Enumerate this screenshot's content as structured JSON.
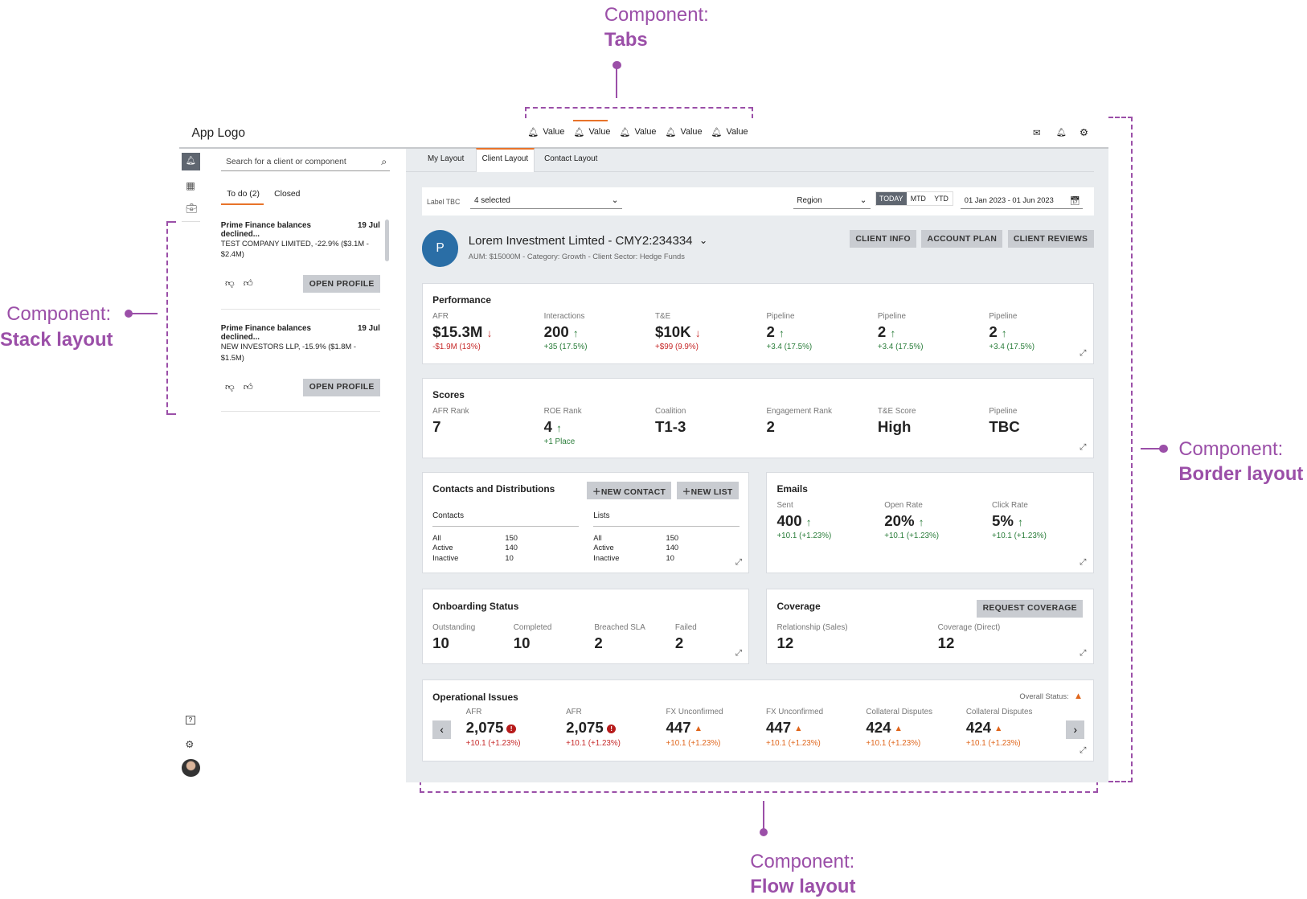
{
  "annotations": {
    "tabs": {
      "prefix": "Component:",
      "name": "Tabs"
    },
    "stack": {
      "prefix": "Component:",
      "name": "Stack layout"
    },
    "border": {
      "prefix": "Component:",
      "name": "Border layout"
    },
    "flow": {
      "prefix": "Component:",
      "name": "Flow layout"
    },
    "color": "#9b4fa8"
  },
  "header": {
    "logo": "App Logo",
    "tabs": [
      {
        "label": "Value",
        "icon": "bell-icon"
      },
      {
        "label": "Value",
        "icon": "bell-icon",
        "active": true
      },
      {
        "label": "Value",
        "icon": "bell-icon"
      },
      {
        "label": "Value",
        "icon": "bell-icon"
      },
      {
        "label": "Value",
        "icon": "bell-icon"
      }
    ],
    "icons": [
      "mail-icon",
      "bell-icon",
      "gear-icon"
    ],
    "accent": "#e8732a"
  },
  "rail": {
    "top": [
      "bell-icon",
      "grid-icon",
      "briefcase-icon"
    ],
    "bottom": [
      "help-icon",
      "gear-icon",
      "avatar"
    ]
  },
  "left_panel": {
    "search_placeholder": "Search for a client or component",
    "tabs": [
      "To do (2)",
      "Closed"
    ],
    "items": [
      {
        "title": "Prime Finance balances declined...",
        "date": "19 Jul",
        "body": "TEST COMPANY LIMITED, -22.9% ($3.1M - $2.4M)",
        "button": "OPEN PROFILE"
      },
      {
        "title": "Prime Finance balances declined...",
        "date": "19 Jul",
        "body": "NEW INVESTORS LLP, -15.9% ($1.8M - $1.5M)",
        "button": "OPEN PROFILE"
      }
    ]
  },
  "main": {
    "tabs": [
      "My Layout",
      "Client Layout",
      "Contact Layout"
    ],
    "filters": {
      "label": "Label TBC",
      "select": "4 selected",
      "region": "Region",
      "periods": [
        "TODAY",
        "MTD",
        "YTD"
      ],
      "active_period": "TODAY",
      "date_range": "01 Jan 2023 - 01 Jun 2023"
    },
    "client": {
      "initial": "P",
      "name": "Lorem Investment Limted - CMY2:234334",
      "meta": "AUM: $15000M - Category: Growth - Client Sector: Hedge Funds",
      "buttons": [
        "CLIENT INFO",
        "ACCOUNT PLAN",
        "CLIENT REVIEWS"
      ],
      "avatar_color": "#2a6ea6"
    },
    "performance": {
      "title": "Performance",
      "metrics": [
        {
          "label": "AFR",
          "value": "$15.3M",
          "dir": "down",
          "change": "-$1.9M (13%)"
        },
        {
          "label": "Interactions",
          "value": "200",
          "dir": "up",
          "change": "+35 (17.5%)"
        },
        {
          "label": "T&E",
          "value": "$10K",
          "dir": "down",
          "change": "+$99 (9.9%)"
        },
        {
          "label": "Pipeline",
          "value": "2",
          "dir": "up",
          "change": "+3.4 (17.5%)"
        },
        {
          "label": "Pipeline",
          "value": "2",
          "dir": "up",
          "change": "+3.4 (17.5%)"
        },
        {
          "label": "Pipeline",
          "value": "2",
          "dir": "up",
          "change": "+3.4 (17.5%)"
        }
      ]
    },
    "scores": {
      "title": "Scores",
      "metrics": [
        {
          "label": "AFR Rank",
          "value": "7"
        },
        {
          "label": "ROE Rank",
          "value": "4",
          "dir": "up",
          "change": "+1 Place"
        },
        {
          "label": "Coalition",
          "value": "T1-3"
        },
        {
          "label": "Engagement Rank",
          "value": "2"
        },
        {
          "label": "T&E Score",
          "value": "High"
        },
        {
          "label": "Pipeline",
          "value": "TBC"
        }
      ]
    },
    "contacts": {
      "title": "Contacts and Distributions",
      "buttons": [
        "NEW CONTACT",
        "NEW LIST"
      ],
      "groups": [
        {
          "title": "Contacts",
          "rows": [
            [
              "All",
              "150"
            ],
            [
              "Active",
              "140"
            ],
            [
              "Inactive",
              "10"
            ]
          ]
        },
        {
          "title": "Lists",
          "rows": [
            [
              "All",
              "150"
            ],
            [
              "Active",
              "140"
            ],
            [
              "Inactive",
              "10"
            ]
          ]
        }
      ]
    },
    "emails": {
      "title": "Emails",
      "metrics": [
        {
          "label": "Sent",
          "value": "400",
          "change": "+10.1 (+1.23%)"
        },
        {
          "label": "Open Rate",
          "value": "20%",
          "change": "+10.1 (+1.23%)"
        },
        {
          "label": "Click Rate",
          "value": "5%",
          "change": "+10.1 (+1.23%)"
        }
      ]
    },
    "onboarding": {
      "title": "Onboarding Status",
      "metrics": [
        {
          "label": "Outstanding",
          "value": "10"
        },
        {
          "label": "Completed",
          "value": "10"
        },
        {
          "label": "Breached SLA",
          "value": "2"
        },
        {
          "label": "Failed",
          "value": "2"
        }
      ]
    },
    "coverage": {
      "title": "Coverage",
      "button": "REQUEST COVERAGE",
      "metrics": [
        {
          "label": "Relationship (Sales)",
          "value": "12"
        },
        {
          "label": "Coverage (Direct)",
          "value": "12"
        }
      ]
    },
    "operational": {
      "title": "Operational Issues",
      "overall_label": "Overall Status:",
      "metrics": [
        {
          "label": "AFR",
          "value": "2,075",
          "severity": "error",
          "change": "+10.1 (+1.23%)"
        },
        {
          "label": "AFR",
          "value": "2,075",
          "severity": "error",
          "change": "+10.1 (+1.23%)"
        },
        {
          "label": "FX Unconfirmed",
          "value": "447",
          "severity": "warning",
          "change": "+10.1 (+1.23%)"
        },
        {
          "label": "FX Unconfirmed",
          "value": "447",
          "severity": "warning",
          "change": "+10.1 (+1.23%)"
        },
        {
          "label": "Collateral Disputes",
          "value": "424",
          "severity": "warning",
          "change": "+10.1 (+1.23%)"
        },
        {
          "label": "Collateral Disputes",
          "value": "424",
          "severity": "warning",
          "change": "+10.1 (+1.23%)"
        }
      ]
    }
  }
}
